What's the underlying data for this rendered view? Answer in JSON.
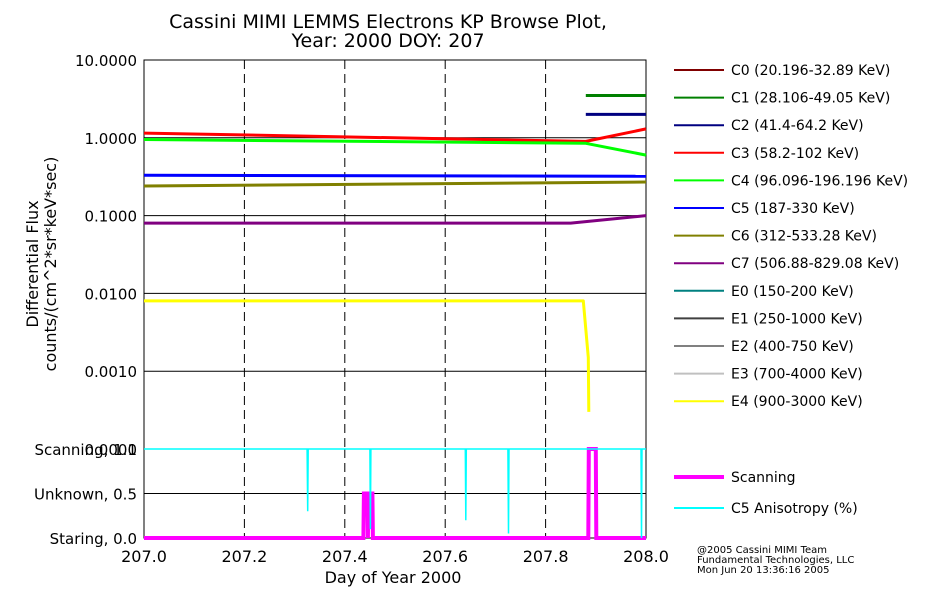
{
  "chart_data": [
    {
      "type": "line",
      "title": "Cassini MIMI LEMMS Electrons KP Browse Plot,",
      "subtitle": "Year: 2000 DOY: 207",
      "ylabel": "Differential Flux",
      "ylabel2": "counts/(cm^2*sr*keV*sec)",
      "yscale": "log",
      "ylim": [
        0.0001,
        10
      ],
      "xlim": [
        207.0,
        208.0
      ],
      "yticks": [
        "10.0000",
        "1.0000",
        "0.1000",
        "0.0100",
        "0.0010",
        "0.0001"
      ],
      "ytick_values": [
        10,
        1,
        0.1,
        0.01,
        0.001,
        0.0001
      ],
      "grid": true,
      "legend_position": "right",
      "series": [
        {
          "name": "C0 (20.196-32.89 KeV)",
          "color": "#800000",
          "x": [],
          "y": []
        },
        {
          "name": "C1 (28.106-49.05 KeV)",
          "color": "#008000",
          "x": [
            207.88,
            208.0
          ],
          "y": [
            3.5,
            3.5
          ]
        },
        {
          "name": "C2 (41.4-64.2 KeV)",
          "color": "#000080",
          "x": [
            207.88,
            208.0
          ],
          "y": [
            2.0,
            2.0
          ]
        },
        {
          "name": "C3 (58.2-102 KeV)",
          "color": "#ff0000",
          "x": [
            207.0,
            207.88,
            208.0
          ],
          "y": [
            1.15,
            0.9,
            1.3
          ]
        },
        {
          "name": "C4 (96.096-196.196 KeV)",
          "color": "#00ff00",
          "x": [
            207.0,
            207.88,
            208.0
          ],
          "y": [
            0.95,
            0.85,
            0.6
          ]
        },
        {
          "name": "C5 (187-330 KeV)",
          "color": "#0000ff",
          "x": [
            207.0,
            208.0
          ],
          "y": [
            0.33,
            0.32
          ]
        },
        {
          "name": "C6 (312-533.28 KeV)",
          "color": "#808000",
          "x": [
            207.0,
            208.0
          ],
          "y": [
            0.24,
            0.27
          ]
        },
        {
          "name": "C7 (506.88-829.08 KeV)",
          "color": "#800080",
          "x": [
            207.0,
            207.85,
            208.0
          ],
          "y": [
            0.08,
            0.08,
            0.1
          ]
        },
        {
          "name": "E0 (150-200 KeV)",
          "color": "#008080",
          "x": [],
          "y": []
        },
        {
          "name": "E1 (250-1000 KeV)",
          "color": "#404040",
          "x": [],
          "y": []
        },
        {
          "name": "E2 (400-750 KeV)",
          "color": "#808080",
          "x": [],
          "y": []
        },
        {
          "name": "E3 (700-4000 KeV)",
          "color": "#c0c0c0",
          "x": [],
          "y": []
        },
        {
          "name": "E4 (900-3000 KeV)",
          "color": "#ffff00",
          "x": [
            207.0,
            207.875,
            207.885,
            207.886
          ],
          "y": [
            0.008,
            0.008,
            0.0015,
            0.0003
          ]
        }
      ]
    },
    {
      "type": "line",
      "xlabel": "Day of Year 2000",
      "xlim": [
        207.0,
        208.0
      ],
      "ylim": [
        0.0,
        1.0
      ],
      "xticks": [
        "207.0",
        "207.2",
        "207.4",
        "207.6",
        "207.8",
        "208.0"
      ],
      "xtick_values": [
        207.0,
        207.2,
        207.4,
        207.6,
        207.8,
        208.0
      ],
      "yticks": [
        "Staring, 0.0",
        "Unknown, 0.5",
        "Scanning, 1.0"
      ],
      "ytick_values": [
        0.0,
        0.5,
        1.0
      ],
      "grid": true,
      "legend_position": "right",
      "series": [
        {
          "name": "Scanning",
          "color": "#ff00ff",
          "x": [
            207.0,
            207.437,
            207.438,
            207.445,
            207.446,
            207.447,
            207.455,
            207.456,
            207.885,
            207.886,
            207.9,
            207.901,
            208.0
          ],
          "y": [
            0.0,
            0.0,
            0.5,
            0.5,
            0.0,
            0.5,
            0.5,
            0.0,
            0.0,
            1.0,
            1.0,
            0.0,
            0.0
          ]
        },
        {
          "name": "C5 Anisotropy (%)",
          "color": "#00ffff",
          "x": [
            207.0,
            207.325,
            207.326,
            207.327,
            207.45,
            207.451,
            207.452,
            207.64,
            207.641,
            207.642,
            207.725,
            207.726,
            207.727,
            207.99,
            207.991,
            207.992,
            208.0
          ],
          "y": [
            1.0,
            1.0,
            0.3,
            1.0,
            1.0,
            0.1,
            1.0,
            1.0,
            0.2,
            1.0,
            1.0,
            0.05,
            1.0,
            1.0,
            0.0,
            1.0,
            1.0
          ]
        }
      ]
    }
  ],
  "credits": [
    "@2005 Cassini MIMI Team",
    "Fundamental Technologies, LLC",
    "Mon Jun 20 13:36:16 2005"
  ]
}
